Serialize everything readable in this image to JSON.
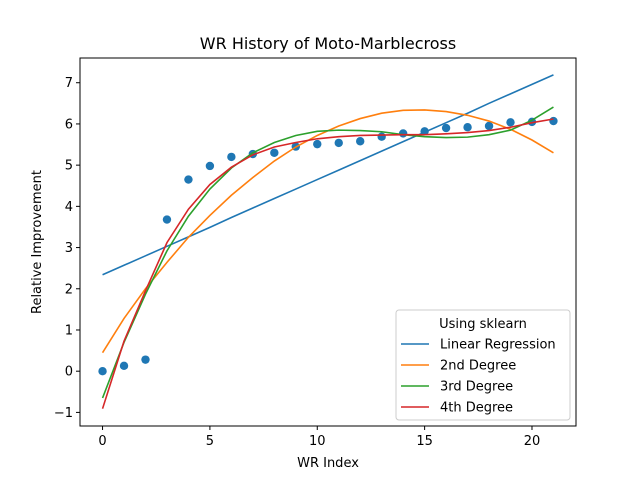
{
  "chart_data": {
    "type": "line",
    "title": "WR History of Moto-Marblecross",
    "xlabel": "WR Index",
    "ylabel": "Relative Improvement",
    "xlim": [
      -1.05,
      22.05
    ],
    "ylim": [
      -1.33,
      7.6
    ],
    "xticks": [
      0,
      5,
      10,
      15,
      20
    ],
    "yticks": [
      -1,
      0,
      1,
      2,
      3,
      4,
      5,
      6,
      7
    ],
    "ytick_labels": [
      "−1",
      "0",
      "1",
      "2",
      "3",
      "4",
      "5",
      "6",
      "7"
    ],
    "grid": false,
    "legend": {
      "title": "Using sklearn",
      "placement": "lower-right"
    },
    "scatter": {
      "color": "#1f77b4",
      "x": [
        0,
        1,
        2,
        3,
        4,
        5,
        6,
        7,
        8,
        9,
        10,
        11,
        12,
        13,
        14,
        15,
        16,
        17,
        18,
        19,
        20,
        21
      ],
      "y": [
        0.0,
        0.13,
        0.28,
        3.68,
        4.65,
        4.98,
        5.2,
        5.27,
        5.3,
        5.45,
        5.51,
        5.54,
        5.58,
        5.69,
        5.77,
        5.82,
        5.9,
        5.92,
        5.95,
        6.04,
        6.05,
        6.07
      ]
    },
    "series": [
      {
        "name": "Linear Regression",
        "color": "#1f77b4",
        "x": [
          0,
          1,
          2,
          3,
          4,
          5,
          6,
          7,
          8,
          9,
          10,
          11,
          12,
          13,
          14,
          15,
          16,
          17,
          18,
          19,
          20,
          21
        ],
        "values": [
          2.34,
          2.57,
          2.8,
          3.03,
          3.26,
          3.49,
          3.73,
          3.96,
          4.19,
          4.42,
          4.65,
          4.88,
          5.11,
          5.34,
          5.57,
          5.8,
          6.03,
          6.26,
          6.5,
          6.73,
          6.96,
          7.19
        ]
      },
      {
        "name": "2nd Degree",
        "color": "#ff7f0e",
        "x": [
          0,
          1,
          2,
          3,
          4,
          5,
          6,
          7,
          8,
          9,
          10,
          11,
          12,
          13,
          14,
          15,
          16,
          17,
          18,
          19,
          20,
          21
        ],
        "values": [
          0.45,
          1.28,
          2.0,
          2.64,
          3.25,
          3.78,
          4.27,
          4.7,
          5.1,
          5.44,
          5.72,
          5.95,
          6.13,
          6.26,
          6.33,
          6.34,
          6.3,
          6.21,
          6.07,
          5.87,
          5.61,
          5.3
        ]
      },
      {
        "name": "3rd Degree",
        "color": "#2ca02c",
        "x": [
          0,
          1,
          2,
          3,
          4,
          5,
          6,
          7,
          8,
          9,
          10,
          11,
          12,
          13,
          14,
          15,
          16,
          17,
          18,
          19,
          20,
          21
        ],
        "values": [
          -0.65,
          0.7,
          1.87,
          2.92,
          3.76,
          4.42,
          4.93,
          5.3,
          5.55,
          5.72,
          5.82,
          5.85,
          5.84,
          5.81,
          5.74,
          5.69,
          5.67,
          5.68,
          5.74,
          5.85,
          6.09,
          6.41
        ]
      },
      {
        "name": "4th Degree",
        "color": "#d62728",
        "x": [
          0,
          1,
          2,
          3,
          4,
          5,
          6,
          7,
          8,
          9,
          10,
          11,
          12,
          13,
          14,
          15,
          16,
          17,
          18,
          19,
          20,
          21
        ],
        "values": [
          -0.91,
          0.73,
          1.95,
          3.12,
          3.93,
          4.53,
          4.95,
          5.25,
          5.44,
          5.55,
          5.64,
          5.69,
          5.72,
          5.73,
          5.74,
          5.74,
          5.76,
          5.79,
          5.84,
          5.92,
          6.03,
          6.12
        ]
      }
    ]
  }
}
